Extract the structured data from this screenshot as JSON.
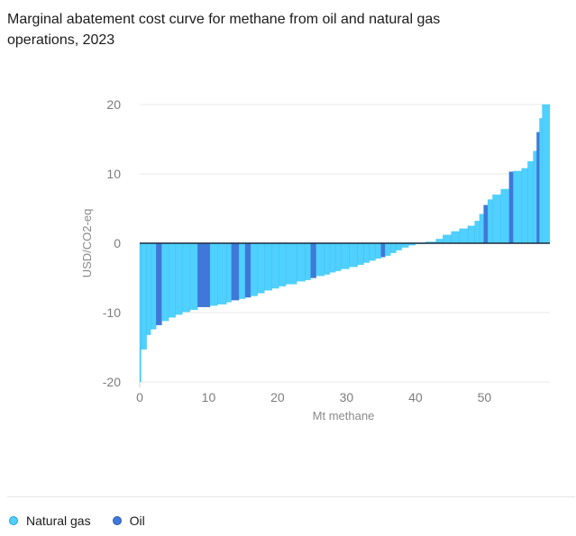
{
  "title": "Marginal abatement cost curve for methane from oil and natural gas operations, 2023",
  "colors": {
    "natural_gas": "#4fd0ff",
    "oil": "#3f78d8",
    "zero_line": "#1a2b3c"
  },
  "chart_data": {
    "type": "bar",
    "xlabel": "Mt methane",
    "ylabel": "USD/CO2-eq",
    "xlim": [
      0,
      59.5
    ],
    "ylim": [
      -20,
      20
    ],
    "xticks": [
      0,
      10,
      20,
      30,
      40,
      50
    ],
    "yticks": [
      20,
      10,
      0,
      -10,
      -20
    ],
    "grid": true,
    "legend_position": "bottom-left",
    "series": [
      {
        "name": "Natural gas",
        "color": "#4fd0ff"
      },
      {
        "name": "Oil",
        "color": "#3f78d8"
      }
    ],
    "segments": [
      {
        "x0": 0,
        "x1": 0.2,
        "y": -20,
        "s": "gas"
      },
      {
        "x0": 0.2,
        "x1": 1.0,
        "y": -15.3,
        "s": "gas"
      },
      {
        "x0": 1.0,
        "x1": 1.6,
        "y": -13.2,
        "s": "gas"
      },
      {
        "x0": 1.6,
        "x1": 2.4,
        "y": -12.4,
        "s": "gas"
      },
      {
        "x0": 2.4,
        "x1": 3.2,
        "y": -11.8,
        "s": "oil"
      },
      {
        "x0": 3.2,
        "x1": 4.2,
        "y": -11.2,
        "s": "gas"
      },
      {
        "x0": 4.2,
        "x1": 5.2,
        "y": -10.7,
        "s": "gas"
      },
      {
        "x0": 5.2,
        "x1": 6.2,
        "y": -10.3,
        "s": "gas"
      },
      {
        "x0": 6.2,
        "x1": 7.3,
        "y": -9.9,
        "s": "gas"
      },
      {
        "x0": 7.3,
        "x1": 8.4,
        "y": -9.6,
        "s": "gas"
      },
      {
        "x0": 8.4,
        "x1": 10.2,
        "y": -9.2,
        "s": "oil"
      },
      {
        "x0": 10.2,
        "x1": 11.3,
        "y": -9.0,
        "s": "gas"
      },
      {
        "x0": 11.3,
        "x1": 12.6,
        "y": -8.8,
        "s": "gas"
      },
      {
        "x0": 12.6,
        "x1": 13.3,
        "y": -8.5,
        "s": "gas"
      },
      {
        "x0": 13.3,
        "x1": 14.4,
        "y": -8.2,
        "s": "oil"
      },
      {
        "x0": 14.4,
        "x1": 15.3,
        "y": -8.0,
        "s": "gas"
      },
      {
        "x0": 15.3,
        "x1": 16.1,
        "y": -7.8,
        "s": "oil"
      },
      {
        "x0": 16.1,
        "x1": 17.1,
        "y": -7.6,
        "s": "gas"
      },
      {
        "x0": 17.1,
        "x1": 18.1,
        "y": -7.2,
        "s": "gas"
      },
      {
        "x0": 18.1,
        "x1": 19.2,
        "y": -6.8,
        "s": "gas"
      },
      {
        "x0": 19.2,
        "x1": 20.2,
        "y": -6.5,
        "s": "gas"
      },
      {
        "x0": 20.2,
        "x1": 21.2,
        "y": -6.2,
        "s": "gas"
      },
      {
        "x0": 21.2,
        "x1": 22.8,
        "y": -5.9,
        "s": "gas"
      },
      {
        "x0": 22.8,
        "x1": 24.0,
        "y": -5.5,
        "s": "gas"
      },
      {
        "x0": 24.0,
        "x1": 24.8,
        "y": -5.3,
        "s": "gas"
      },
      {
        "x0": 24.8,
        "x1": 25.6,
        "y": -5.0,
        "s": "oil"
      },
      {
        "x0": 25.6,
        "x1": 26.8,
        "y": -4.7,
        "s": "gas"
      },
      {
        "x0": 26.8,
        "x1": 27.6,
        "y": -4.5,
        "s": "gas"
      },
      {
        "x0": 27.6,
        "x1": 28.4,
        "y": -4.2,
        "s": "gas"
      },
      {
        "x0": 28.4,
        "x1": 29.2,
        "y": -4.0,
        "s": "gas"
      },
      {
        "x0": 29.2,
        "x1": 30.4,
        "y": -3.7,
        "s": "gas"
      },
      {
        "x0": 30.4,
        "x1": 31.6,
        "y": -3.4,
        "s": "gas"
      },
      {
        "x0": 31.6,
        "x1": 32.5,
        "y": -3.1,
        "s": "gas"
      },
      {
        "x0": 32.5,
        "x1": 33.3,
        "y": -2.8,
        "s": "gas"
      },
      {
        "x0": 33.3,
        "x1": 34.2,
        "y": -2.5,
        "s": "gas"
      },
      {
        "x0": 34.2,
        "x1": 35.0,
        "y": -2.2,
        "s": "gas"
      },
      {
        "x0": 35.0,
        "x1": 35.6,
        "y": -2.0,
        "s": "oil"
      },
      {
        "x0": 35.6,
        "x1": 36.4,
        "y": -1.8,
        "s": "gas"
      },
      {
        "x0": 36.4,
        "x1": 37.2,
        "y": -1.4,
        "s": "gas"
      },
      {
        "x0": 37.2,
        "x1": 38.0,
        "y": -1.0,
        "s": "gas"
      },
      {
        "x0": 38.0,
        "x1": 39.0,
        "y": -0.6,
        "s": "gas"
      },
      {
        "x0": 39.0,
        "x1": 40.0,
        "y": -0.3,
        "s": "gas"
      },
      {
        "x0": 40.0,
        "x1": 41.5,
        "y": -0.1,
        "s": "gas"
      },
      {
        "x0": 41.5,
        "x1": 43.0,
        "y": 0.2,
        "s": "gas"
      },
      {
        "x0": 43.0,
        "x1": 44.0,
        "y": 0.6,
        "s": "gas"
      },
      {
        "x0": 44.0,
        "x1": 45.2,
        "y": 1.2,
        "s": "gas"
      },
      {
        "x0": 45.2,
        "x1": 46.4,
        "y": 1.7,
        "s": "gas"
      },
      {
        "x0": 46.4,
        "x1": 47.6,
        "y": 2.1,
        "s": "gas"
      },
      {
        "x0": 47.6,
        "x1": 48.6,
        "y": 2.5,
        "s": "gas"
      },
      {
        "x0": 48.6,
        "x1": 49.3,
        "y": 3.2,
        "s": "gas"
      },
      {
        "x0": 49.3,
        "x1": 49.9,
        "y": 4.2,
        "s": "gas"
      },
      {
        "x0": 49.9,
        "x1": 50.5,
        "y": 5.5,
        "s": "oil"
      },
      {
        "x0": 50.5,
        "x1": 51.2,
        "y": 6.3,
        "s": "gas"
      },
      {
        "x0": 51.2,
        "x1": 52.4,
        "y": 7.0,
        "s": "gas"
      },
      {
        "x0": 52.4,
        "x1": 53.6,
        "y": 7.8,
        "s": "gas"
      },
      {
        "x0": 53.6,
        "x1": 54.2,
        "y": 10.3,
        "s": "oil"
      },
      {
        "x0": 54.2,
        "x1": 55.4,
        "y": 10.4,
        "s": "gas"
      },
      {
        "x0": 55.4,
        "x1": 56.3,
        "y": 10.8,
        "s": "gas"
      },
      {
        "x0": 56.3,
        "x1": 57.1,
        "y": 11.8,
        "s": "gas"
      },
      {
        "x0": 57.1,
        "x1": 57.6,
        "y": 13.3,
        "s": "gas"
      },
      {
        "x0": 57.6,
        "x1": 58.0,
        "y": 16.0,
        "s": "oil"
      },
      {
        "x0": 58.0,
        "x1": 58.4,
        "y": 18.0,
        "s": "gas"
      },
      {
        "x0": 58.4,
        "x1": 59.5,
        "y": 20.0,
        "s": "gas"
      }
    ]
  }
}
